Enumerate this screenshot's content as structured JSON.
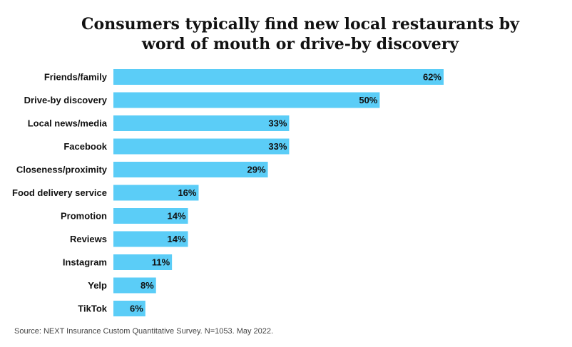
{
  "title": {
    "line1": "Consumers typically find new local restaurants by",
    "line2": "word of mouth or drive-by discovery"
  },
  "source": "Source: NEXT Insurance Custom Quantitative Survey. N=1053. May 2022.",
  "colors": {
    "bar": "#5bcdf7"
  },
  "chart_data": {
    "type": "bar",
    "orientation": "horizontal",
    "title": "Consumers typically find new local restaurants by word of mouth or drive-by discovery",
    "categories": [
      "Friends/family",
      "Drive-by discovery",
      "Local news/media",
      "Facebook",
      "Closeness/proximity",
      "Food delivery service",
      "Promotion",
      "Reviews",
      "Instagram",
      "Yelp",
      "TikTok"
    ],
    "values": [
      62,
      50,
      33,
      33,
      29,
      16,
      14,
      14,
      11,
      8,
      6
    ],
    "value_labels": [
      "62%",
      "50%",
      "33%",
      "33%",
      "29%",
      "16%",
      "14%",
      "14%",
      "11%",
      "8%",
      "6%"
    ],
    "unit": "%",
    "xlim": [
      0,
      62
    ],
    "grid": false,
    "legend": "none"
  }
}
